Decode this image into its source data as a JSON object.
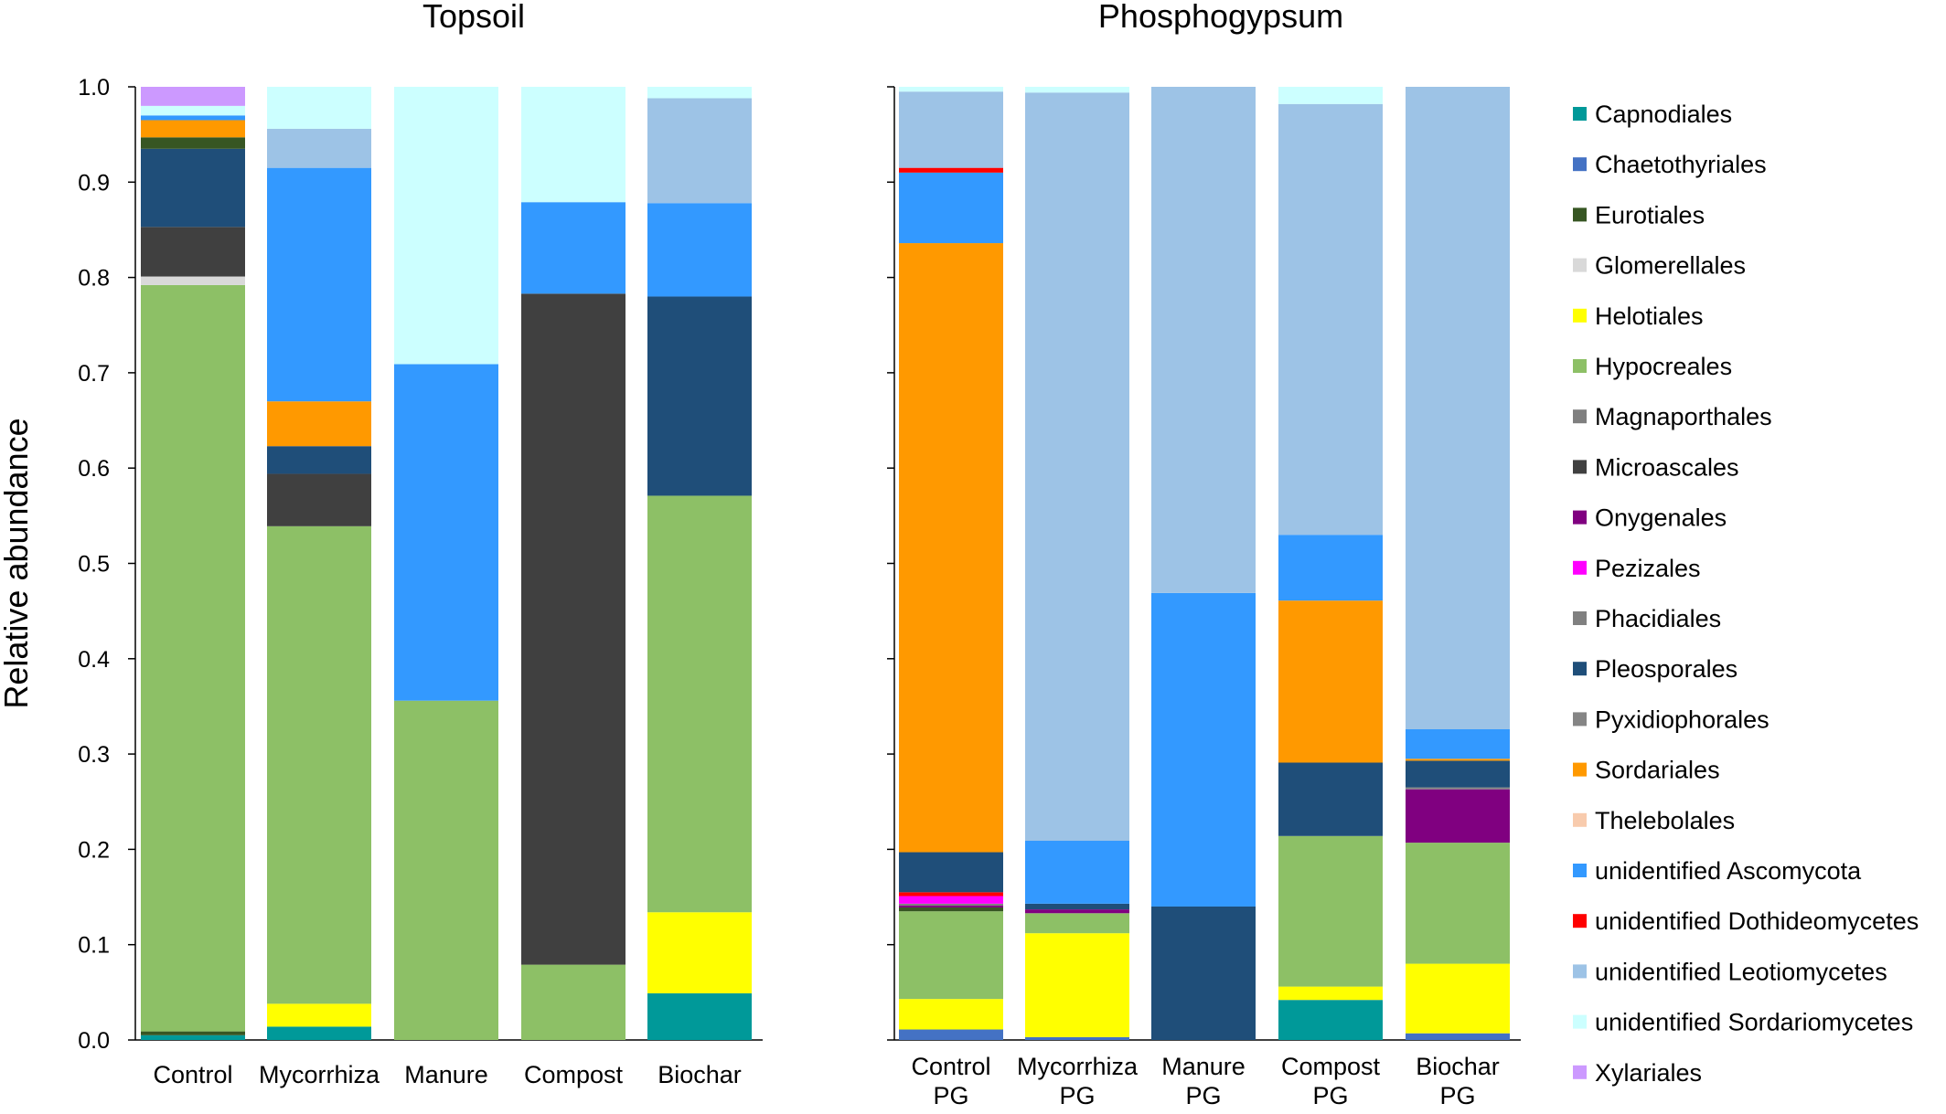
{
  "chart_data": {
    "type": "bar",
    "stacked": true,
    "ylabel": "Relative abundance",
    "ylim": [
      0,
      1.0
    ],
    "yticks": [
      "0.0",
      "0.1",
      "0.2",
      "0.3",
      "0.4",
      "0.5",
      "0.6",
      "0.7",
      "0.8",
      "0.9",
      "1.0"
    ],
    "legend_position": "right",
    "orders": [
      {
        "name": "Capnodiales",
        "color": "#009999"
      },
      {
        "name": "Chaetothyriales",
        "color": "#4472C4"
      },
      {
        "name": "Eurotiales",
        "color": "#375623"
      },
      {
        "name": "Glomerellales",
        "color": "#D9D9D9"
      },
      {
        "name": "Helotiales",
        "color": "#FFFF00"
      },
      {
        "name": "Hypocreales",
        "color": "#8DC066"
      },
      {
        "name": "Magnaporthales",
        "color": "#7F7F7F"
      },
      {
        "name": "Microascales",
        "color": "#404040"
      },
      {
        "name": "Onygenales",
        "color": "#800080"
      },
      {
        "name": "Pezizales",
        "color": "#FF00FF"
      },
      {
        "name": "Phacidiales",
        "color": "#808080"
      },
      {
        "name": "Pleosporales",
        "color": "#1F4E79"
      },
      {
        "name": "Pyxidiophorales",
        "color": "#858585"
      },
      {
        "name": "Sordariales",
        "color": "#FF9900"
      },
      {
        "name": "Thelebolales",
        "color": "#F8CBAD"
      },
      {
        "name": "unidentified Ascomycota",
        "color": "#3399FF"
      },
      {
        "name": "unidentified Dothideomycetes",
        "color": "#FF0000"
      },
      {
        "name": "unidentified Leotiomycetes",
        "color": "#9DC3E6"
      },
      {
        "name": "unidentified Sordariomycetes",
        "color": "#CCFFFF"
      },
      {
        "name": "Xylariales",
        "color": "#CC99FF"
      }
    ],
    "panels": [
      {
        "title": "Topsoil",
        "bars": [
          {
            "label": [
              "Control"
            ],
            "segments": [
              {
                "order": "Capnodiales",
                "value": 0.005
              },
              {
                "order": "Eurotiales",
                "value": 0.004
              },
              {
                "order": "Hypocreales",
                "value": 0.783
              },
              {
                "order": "Glomerellales",
                "value": 0.009
              },
              {
                "order": "Microascales",
                "value": 0.052
              },
              {
                "order": "Pleosporales",
                "value": 0.082
              },
              {
                "order": "Eurotiales",
                "value": 0.012
              },
              {
                "order": "Sordariales",
                "value": 0.018
              },
              {
                "order": "unidentified Ascomycota",
                "value": 0.005
              },
              {
                "order": "unidentified Sordariomycetes",
                "value": 0.01
              },
              {
                "order": "Xylariales",
                "value": 0.02
              }
            ]
          },
          {
            "label": [
              "Mycorrhiza"
            ],
            "segments": [
              {
                "order": "Capnodiales",
                "value": 0.014
              },
              {
                "order": "Helotiales",
                "value": 0.024
              },
              {
                "order": "Hypocreales",
                "value": 0.501
              },
              {
                "order": "Microascales",
                "value": 0.055
              },
              {
                "order": "Pleosporales",
                "value": 0.029
              },
              {
                "order": "Sordariales",
                "value": 0.047
              },
              {
                "order": "unidentified Ascomycota",
                "value": 0.245
              },
              {
                "order": "unidentified Leotiomycetes",
                "value": 0.041
              },
              {
                "order": "unidentified Sordariomycetes",
                "value": 0.044
              }
            ]
          },
          {
            "label": [
              "Manure"
            ],
            "segments": [
              {
                "order": "Hypocreales",
                "value": 0.356
              },
              {
                "order": "unidentified Ascomycota",
                "value": 0.353
              },
              {
                "order": "unidentified Sordariomycetes",
                "value": 0.291
              }
            ]
          },
          {
            "label": [
              "Compost"
            ],
            "segments": [
              {
                "order": "Hypocreales",
                "value": 0.079
              },
              {
                "order": "Microascales",
                "value": 0.704
              },
              {
                "order": "unidentified Ascomycota",
                "value": 0.096
              },
              {
                "order": "unidentified Sordariomycetes",
                "value": 0.121
              }
            ]
          },
          {
            "label": [
              "Biochar"
            ],
            "segments": [
              {
                "order": "Capnodiales",
                "value": 0.049
              },
              {
                "order": "Helotiales",
                "value": 0.085
              },
              {
                "order": "Hypocreales",
                "value": 0.437
              },
              {
                "order": "Pleosporales",
                "value": 0.209
              },
              {
                "order": "unidentified Ascomycota",
                "value": 0.098
              },
              {
                "order": "unidentified Leotiomycetes",
                "value": 0.11
              },
              {
                "order": "unidentified Sordariomycetes",
                "value": 0.012
              }
            ]
          }
        ]
      },
      {
        "title": "Phosphogypsum",
        "bars": [
          {
            "label": [
              "Control",
              "PG"
            ],
            "segments": [
              {
                "order": "Chaetothyriales",
                "value": 0.011
              },
              {
                "order": "Helotiales",
                "value": 0.032
              },
              {
                "order": "Hypocreales",
                "value": 0.092
              },
              {
                "order": "Eurotiales",
                "value": 0.004
              },
              {
                "order": "Onygenales",
                "value": 0.002
              },
              {
                "order": "Magnaporthales",
                "value": 0.002
              },
              {
                "order": "Pezizales",
                "value": 0.008
              },
              {
                "order": "unidentified Dothideomycetes",
                "value": 0.004
              },
              {
                "order": "Pleosporales",
                "value": 0.042
              },
              {
                "order": "Sordariales",
                "value": 0.639
              },
              {
                "order": "unidentified Ascomycota",
                "value": 0.074
              },
              {
                "order": "unidentified Dothideomycetes",
                "value": 0.005
              },
              {
                "order": "unidentified Leotiomycetes",
                "value": 0.08
              },
              {
                "order": "unidentified Sordariomycetes",
                "value": 0.005
              }
            ]
          },
          {
            "label": [
              "Mycorrhiza",
              "PG"
            ],
            "segments": [
              {
                "order": "Chaetothyriales",
                "value": 0.003
              },
              {
                "order": "Helotiales",
                "value": 0.109
              },
              {
                "order": "Hypocreales",
                "value": 0.021
              },
              {
                "order": "Onygenales",
                "value": 0.004
              },
              {
                "order": "Pleosporales",
                "value": 0.006
              },
              {
                "order": "unidentified Ascomycota",
                "value": 0.066
              },
              {
                "order": "unidentified Leotiomycetes",
                "value": 0.785
              },
              {
                "order": "unidentified Sordariomycetes",
                "value": 0.006
              }
            ]
          },
          {
            "label": [
              "Manure",
              "PG"
            ],
            "segments": [
              {
                "order": "Pleosporales",
                "value": 0.14
              },
              {
                "order": "unidentified Ascomycota",
                "value": 0.329
              },
              {
                "order": "unidentified Leotiomycetes",
                "value": 0.531
              }
            ]
          },
          {
            "label": [
              "Compost",
              "PG"
            ],
            "segments": [
              {
                "order": "Capnodiales",
                "value": 0.042
              },
              {
                "order": "Helotiales",
                "value": 0.014
              },
              {
                "order": "Hypocreales",
                "value": 0.158
              },
              {
                "order": "Pleosporales",
                "value": 0.077
              },
              {
                "order": "Sordariales",
                "value": 0.17
              },
              {
                "order": "unidentified Ascomycota",
                "value": 0.069
              },
              {
                "order": "unidentified Leotiomycetes",
                "value": 0.452
              },
              {
                "order": "unidentified Sordariomycetes",
                "value": 0.018
              }
            ]
          },
          {
            "label": [
              "Biochar",
              "PG"
            ],
            "segments": [
              {
                "order": "Chaetothyriales",
                "value": 0.007
              },
              {
                "order": "Helotiales",
                "value": 0.073
              },
              {
                "order": "Hypocreales",
                "value": 0.127
              },
              {
                "order": "Onygenales",
                "value": 0.056
              },
              {
                "order": "Pyxidiophorales",
                "value": 0.002
              },
              {
                "order": "Pleosporales",
                "value": 0.028
              },
              {
                "order": "Sordariales",
                "value": 0.002
              },
              {
                "order": "unidentified Ascomycota",
                "value": 0.031
              },
              {
                "order": "unidentified Leotiomycetes",
                "value": 0.674
              }
            ]
          }
        ]
      }
    ]
  }
}
